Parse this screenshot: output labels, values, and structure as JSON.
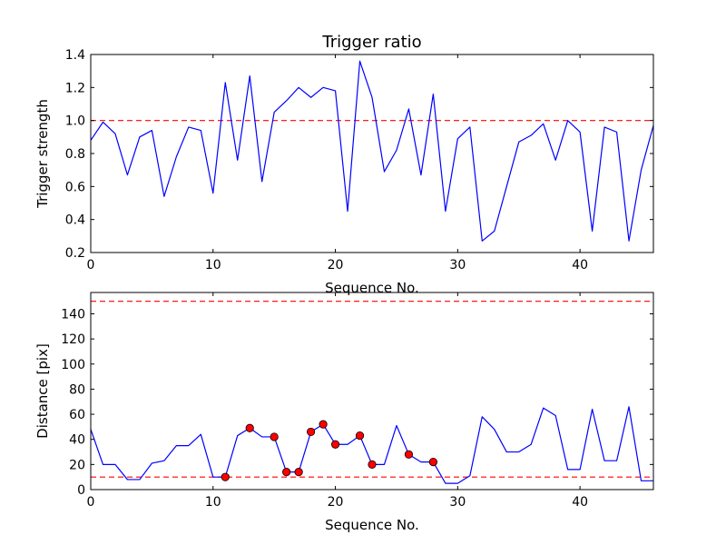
{
  "chart_data": [
    {
      "type": "line",
      "title": "Trigger ratio",
      "xlabel": "Sequence No.",
      "ylabel": "Trigger strength",
      "xlim": [
        0,
        46
      ],
      "ylim": [
        0.2,
        1.4
      ],
      "xticks": [
        0,
        10,
        20,
        30,
        40
      ],
      "yticks": [
        0.2,
        0.4,
        0.6,
        0.8,
        1.0,
        1.2,
        1.4
      ],
      "ytick_labels": [
        "0.2",
        "0.4",
        "0.6",
        "0.8",
        "1.0",
        "1.2",
        "1.4"
      ],
      "grid": false,
      "line_color": "#0000ff",
      "threshold_color": "#ff0000",
      "thresholds": [
        1.0
      ],
      "x": [
        0,
        1,
        2,
        3,
        4,
        5,
        6,
        7,
        8,
        9,
        10,
        11,
        12,
        13,
        14,
        15,
        16,
        17,
        18,
        19,
        20,
        21,
        22,
        23,
        24,
        25,
        26,
        27,
        28,
        29,
        30,
        31,
        32,
        33,
        34,
        35,
        36,
        37,
        38,
        39,
        40,
        41,
        42,
        43,
        44,
        45,
        46
      ],
      "y": [
        0.88,
        0.99,
        0.92,
        0.67,
        0.9,
        0.94,
        0.54,
        0.78,
        0.96,
        0.94,
        0.56,
        1.23,
        0.76,
        1.27,
        0.63,
        1.05,
        1.12,
        1.2,
        1.14,
        1.2,
        1.18,
        0.45,
        1.36,
        1.14,
        0.69,
        0.82,
        1.07,
        0.67,
        1.16,
        0.45,
        0.89,
        0.96,
        0.27,
        0.33,
        0.6,
        0.87,
        0.91,
        0.98,
        0.76,
        1.0,
        0.93,
        0.33,
        0.96,
        0.93,
        0.27,
        0.7,
        0.97
      ]
    },
    {
      "type": "line",
      "title": "",
      "xlabel": "Sequence No.",
      "ylabel": "Distance [pix]",
      "xlim": [
        0,
        46
      ],
      "ylim": [
        0,
        157
      ],
      "xticks": [
        0,
        10,
        20,
        30,
        40
      ],
      "yticks": [
        0,
        20,
        40,
        60,
        80,
        100,
        120,
        140
      ],
      "ytick_labels": [
        "0",
        "20",
        "40",
        "60",
        "80",
        "100",
        "120",
        "140"
      ],
      "grid": false,
      "line_color": "#0000ff",
      "marker_color": "#ff0000",
      "threshold_color": "#ff0000",
      "thresholds": [
        10,
        150
      ],
      "x": [
        0,
        1,
        2,
        3,
        4,
        5,
        6,
        7,
        8,
        9,
        10,
        11,
        12,
        13,
        14,
        15,
        16,
        17,
        18,
        19,
        20,
        21,
        22,
        23,
        24,
        25,
        26,
        27,
        28,
        29,
        30,
        31,
        32,
        33,
        34,
        35,
        36,
        37,
        38,
        39,
        40,
        41,
        42,
        43,
        44,
        45,
        46
      ],
      "y": [
        48,
        20,
        20,
        8,
        8,
        21,
        23,
        35,
        35,
        44,
        10,
        10,
        43,
        49,
        42,
        42,
        14,
        14,
        46,
        52,
        36,
        36,
        43,
        20,
        20,
        51,
        28,
        22,
        22,
        5,
        5,
        11,
        58,
        48,
        30,
        30,
        36,
        65,
        59,
        16,
        16,
        64,
        23,
        23,
        66,
        7,
        7
      ],
      "highlighted_points": [
        {
          "x": 11,
          "y": 10
        },
        {
          "x": 13,
          "y": 49
        },
        {
          "x": 15,
          "y": 42
        },
        {
          "x": 16,
          "y": 14
        },
        {
          "x": 17,
          "y": 14
        },
        {
          "x": 18,
          "y": 46
        },
        {
          "x": 19,
          "y": 52
        },
        {
          "x": 20,
          "y": 36
        },
        {
          "x": 22,
          "y": 43
        },
        {
          "x": 23,
          "y": 20
        },
        {
          "x": 26,
          "y": 28
        },
        {
          "x": 28,
          "y": 22
        }
      ]
    }
  ]
}
